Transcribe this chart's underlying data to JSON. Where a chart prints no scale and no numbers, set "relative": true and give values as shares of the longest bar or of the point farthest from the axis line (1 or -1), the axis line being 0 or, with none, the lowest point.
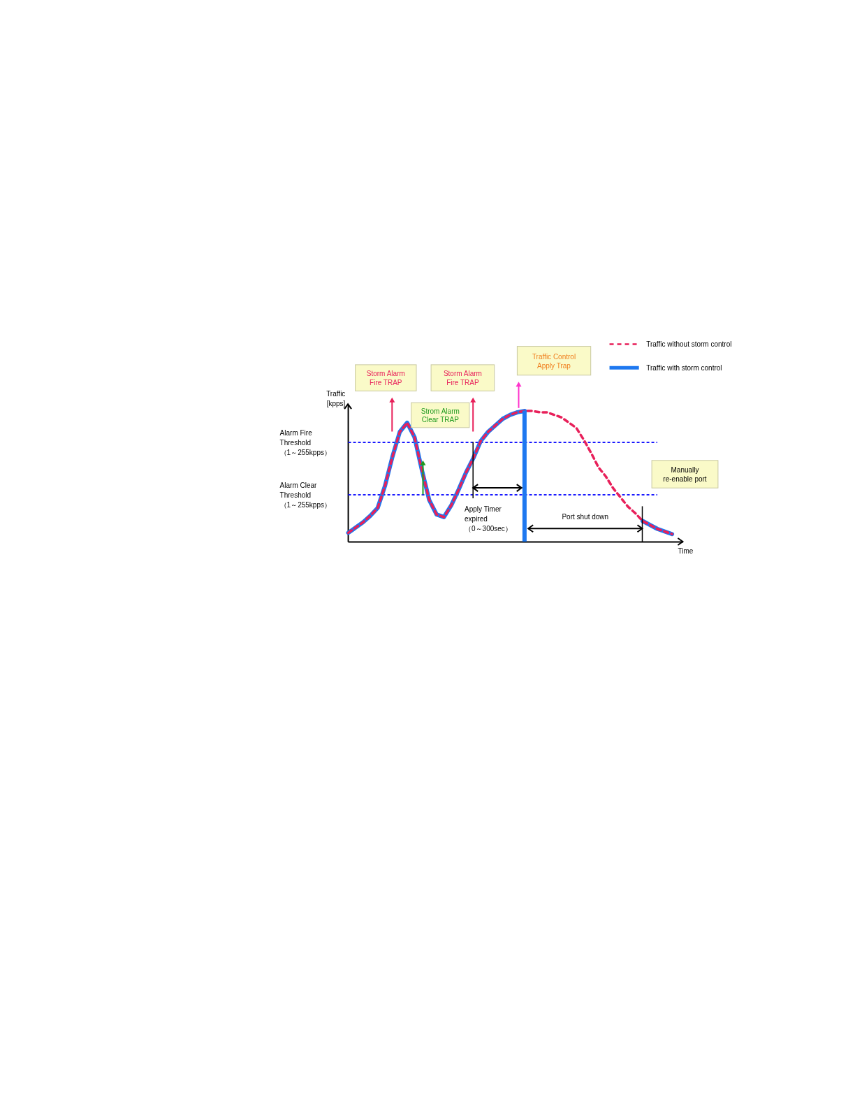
{
  "chart_data": {
    "type": "line",
    "relative": true,
    "ylabel": "Traffic\n[kpps]",
    "xlabel": "Time",
    "legend": "top right",
    "categories": [
      null,
      null,
      null,
      null,
      null,
      null,
      null,
      null,
      null,
      null,
      null,
      null,
      null,
      null,
      null,
      null,
      null,
      null,
      null,
      null,
      null,
      null,
      null,
      null,
      null,
      null,
      null,
      null,
      null,
      null,
      null,
      null,
      null,
      null,
      null,
      null,
      null,
      null,
      null,
      null,
      null,
      null,
      null,
      null,
      null
    ],
    "series": [
      {
        "name": "Traffic with storm control",
        "color": "#1e78f0",
        "line_style": "solid",
        "values": [
          0.07,
          0.11,
          0.15,
          0.2,
          0.26,
          0.43,
          0.65,
          0.84,
          0.91,
          0.8,
          0.55,
          0.32,
          0.21,
          0.19,
          0.28,
          0.4,
          0.53,
          0.64,
          0.77,
          0.84,
          0.89,
          0.94,
          0.97,
          0.99,
          1.0,
          null,
          null,
          null,
          null,
          null,
          null,
          null,
          null,
          null,
          null,
          null,
          null,
          null,
          null,
          null,
          0.16,
          0.13,
          0.1,
          0.08,
          0.06
        ]
      },
      {
        "name": "Traffic without storm control",
        "color": "#e8205a",
        "line_style": "dashed",
        "values": [
          0.07,
          0.11,
          0.15,
          0.2,
          0.26,
          0.43,
          0.65,
          0.84,
          0.91,
          0.8,
          0.55,
          0.32,
          0.21,
          0.19,
          0.28,
          0.4,
          0.53,
          0.64,
          0.77,
          0.84,
          0.89,
          0.94,
          0.97,
          0.99,
          1.0,
          1.0,
          0.99,
          0.99,
          0.97,
          0.95,
          0.91,
          0.87,
          0.78,
          0.68,
          0.57,
          0.5,
          0.41,
          0.34,
          0.27,
          0.22,
          0.16,
          0.13,
          0.1,
          0.08,
          0.06
        ]
      }
    ],
    "ref_lines": [
      {
        "axis": "y",
        "value": 0.76,
        "label": "Alarm Fire\nThreshold\n（1～255kpps）",
        "color": "#1a1aff",
        "line_style": "dashed"
      },
      {
        "axis": "y",
        "value": 0.36,
        "label": "Alarm Clear\nThreshold\n（1～255kpps）",
        "color": "#1a1aff",
        "line_style": "dashed"
      }
    ],
    "annotations": [
      "Storm Alarm\nFire TRAP",
      "Storm Alarm\nFire TRAP",
      "Strom Alarm\nClear TRAP",
      "Traffic Control\nApply Trap",
      "Manually\nre-enable port",
      "Apply Timer\nexpired\n（0～300sec）",
      "Port shut down"
    ]
  }
}
